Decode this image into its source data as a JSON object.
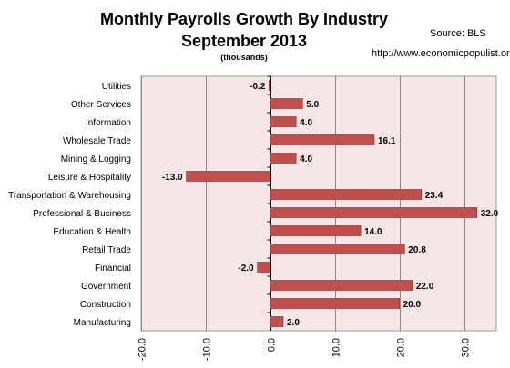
{
  "title_line1": "Monthly Payrolls Growth By Industry",
  "title_line2": "September 2013",
  "subtitle": "(thousands)",
  "source": "Source:  BLS",
  "url": "http://www.economicpopulist.org",
  "chart_data": {
    "type": "bar",
    "orientation": "horizontal",
    "title": "Monthly Payrolls Growth By Industry September 2013",
    "subtitle": "(thousands)",
    "categories": [
      "Utilities",
      "Other Services",
      "Information",
      "Wholesale Trade",
      "Mining & Logging",
      "Leisure & Hospitality",
      "Transportation & Warehousing",
      "Professional & Business",
      "Education & Health",
      "Retail Trade",
      "Financial",
      "Government",
      "Construction",
      "Manufacturing"
    ],
    "values": [
      -0.2,
      5.0,
      4.0,
      16.1,
      4.0,
      -13.0,
      23.4,
      32.0,
      14.0,
      20.8,
      -2.0,
      22.0,
      20.0,
      2.0
    ],
    "value_labels": [
      "-0.2",
      "5.0",
      "4.0",
      "16.1",
      "4.0",
      "-13.0",
      "23.4",
      "32.0",
      "14.0",
      "20.8",
      "-2.0",
      "22.0",
      "20.0",
      "2.0"
    ],
    "xlim": [
      -20,
      35
    ],
    "xticks": [
      -20,
      -10,
      0,
      10,
      20,
      30
    ],
    "xtick_labels": [
      "-20.0",
      "-10.0",
      "0.0",
      "10.0",
      "20.0",
      "30.0"
    ],
    "grid": "vertical",
    "bar_color": "#c0504d",
    "plot_background": "#f6e6e6"
  }
}
